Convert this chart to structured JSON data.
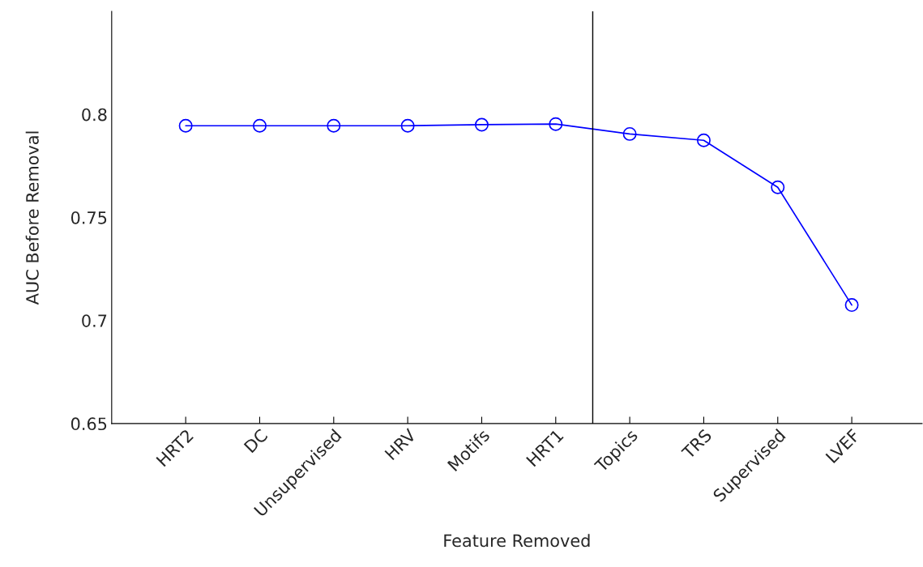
{
  "chart_data": {
    "type": "line",
    "xlabel": "Feature Removed",
    "ylabel": "AUC Before Removal",
    "categories": [
      "HRT2",
      "DC",
      "Unsupervised",
      "HRV",
      "Motifs",
      "HRT1",
      "Topics",
      "TRS",
      "Supervised",
      "LVEF"
    ],
    "series": [
      {
        "color": "#0000ff",
        "values": [
          0.7945,
          0.7945,
          0.7945,
          0.7945,
          0.795,
          0.7953,
          0.7905,
          0.7874,
          0.7646,
          0.7075
        ]
      }
    ],
    "ylim": [
      0.65,
      0.85
    ],
    "yticks": [
      0.65,
      {
        "value": 0.7,
        "label": "0.7"
      },
      0.75,
      {
        "value": 0.8,
        "label": "0.8"
      }
    ],
    "marker": "circle",
    "line_style": "solid",
    "grid": false,
    "legend": false
  }
}
